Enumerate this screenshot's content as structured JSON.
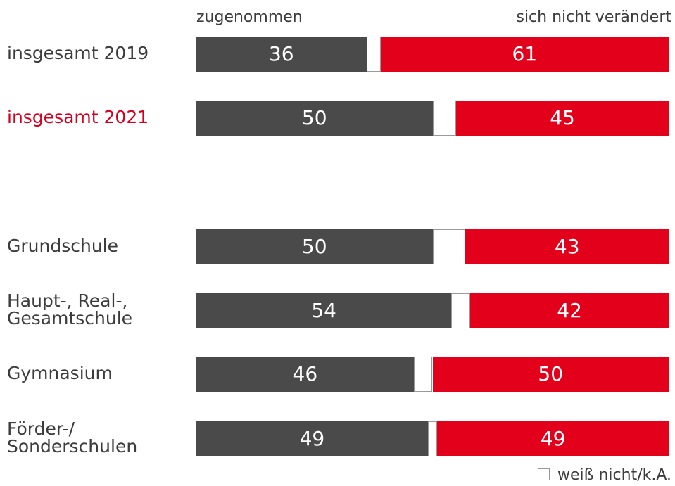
{
  "chart_data": {
    "type": "stacked-bar",
    "orientation": "horizontal",
    "categories": [
      "insgesamt 2019",
      "insgesamt 2021",
      "Grundschule",
      "Haupt-, Real-,\nGesamtschule",
      "Gymnasium",
      "Förder-/\nSonderschulen"
    ],
    "label_colors": [
      "#3c3c3c",
      "#d5001f",
      "#3c3c3c",
      "#3c3c3c",
      "#3c3c3c",
      "#3c3c3c"
    ],
    "xlim": [
      0,
      100
    ],
    "series": [
      {
        "name": "zugenommen",
        "color": "#4a4a4a",
        "values": [
          36,
          50,
          50,
          54,
          46,
          49
        ]
      },
      {
        "name": "weiß nicht/k.A.",
        "color": "#ffffff",
        "values": [
          3,
          5,
          7,
          4,
          4,
          2
        ]
      },
      {
        "name": "sich nicht verändert",
        "color": "#e2001a",
        "values": [
          61,
          45,
          43,
          42,
          50,
          49
        ]
      }
    ]
  }
}
